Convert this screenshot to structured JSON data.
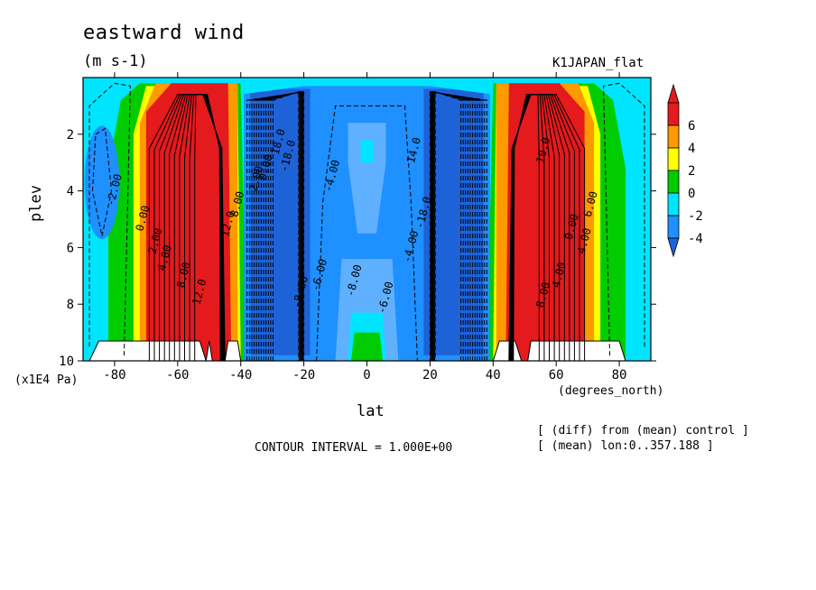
{
  "chart_data": {
    "type": "heatmap",
    "title": "eastward wind",
    "units": "(m s-1)",
    "run_name": "K1JAPAN_flat",
    "xlabel": "lat",
    "xunit": "(degrees_north)",
    "ylabel": "plev",
    "yunit": "(x1E4 Pa)",
    "xlim": [
      -90,
      90
    ],
    "ylim": [
      10,
      0
    ],
    "x_ticks": [
      -80,
      -60,
      -40,
      -20,
      0,
      20,
      40,
      60,
      80
    ],
    "y_ticks": [
      2,
      4,
      6,
      8,
      10
    ],
    "colorbar": {
      "levels": [
        6,
        4,
        2,
        0,
        -2,
        -4
      ],
      "colors": [
        "#e41a1c",
        "#ff9900",
        "#ffff00",
        "#00cc00",
        "#00e5ff",
        "#1e90ff",
        "#1e62d8"
      ]
    },
    "contour_labels": [
      "-2.00",
      "0.00",
      "2.00",
      "4.00",
      "8.00",
      "12.0",
      "12.0",
      "8.00",
      "2.00",
      "0.00",
      "18.0",
      "-18.0",
      "-8.00",
      "-6.00",
      "-4.00",
      "-8.00",
      "-6.00",
      "-4.00",
      "-18.0",
      "14.0",
      "10.0",
      "8.00",
      "4.00",
      "0.00",
      "6.00",
      "4.00"
    ],
    "contour_interval": "CONTOUR INTERVAL = 1.000E+00",
    "notes": [
      "[ (diff) from (mean) control ]",
      "[ (mean) lon:0..357.188 ]"
    ]
  }
}
